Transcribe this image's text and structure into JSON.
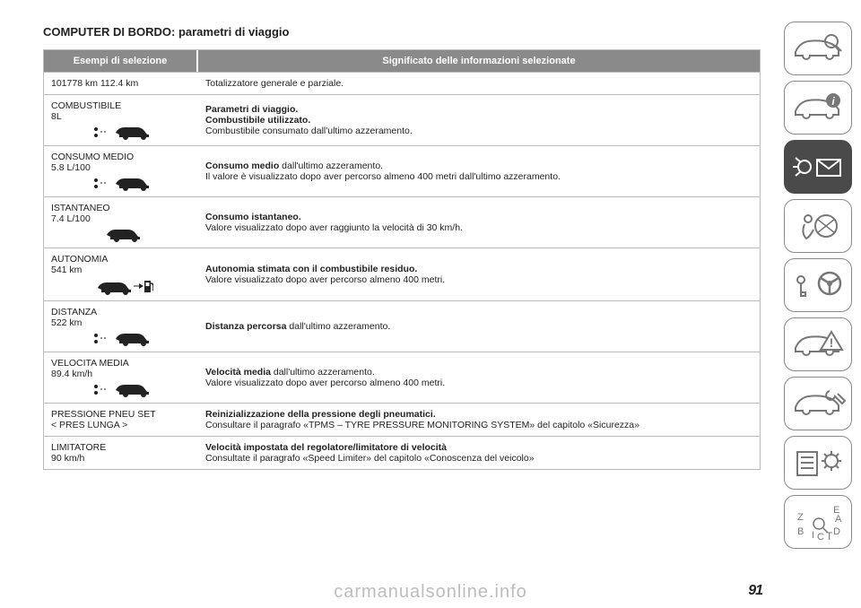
{
  "page_title": "COMPUTER DI BORDO: parametri di viaggio",
  "table": {
    "header_left": "Esempi di selezione",
    "header_right": "Significato delle informazioni selezionate",
    "header_bg": "#8a8a8a",
    "header_fg": "#ffffff",
    "border_color": "#bbbbbb",
    "rows": [
      {
        "left_l1": "101778 km 112.4 km",
        "left_l2": "",
        "icon": "none",
        "right_bold": "",
        "right_plain": "Totalizzatore generale e parziale."
      },
      {
        "left_l1": "COMBUSTIBILE",
        "left_l2": "8L",
        "icon": "trip",
        "right_bold": "Parametri di viaggio.\nCombustibile utilizzato.",
        "right_plain": "Combustibile consumato dall'ultimo azzeramento."
      },
      {
        "left_l1": "CONSUMO MEDIO",
        "left_l2": "5.8 L/100",
        "icon": "trip",
        "right_bold": "Consumo medio",
        "right_cont": " dall'ultimo azzeramento.",
        "right_plain": "Il valore è visualizzato dopo aver percorso almeno 400 metri dall'ultimo azzeramento."
      },
      {
        "left_l1": "ISTANTANEO",
        "left_l2": "7.4 L/100",
        "icon": "car",
        "right_bold": "Consumo istantaneo.",
        "right_plain": "Valore visualizzato dopo aver raggiunto la velocità di 30 km/h."
      },
      {
        "left_l1": "AUTONOMIA",
        "left_l2": "541 km",
        "icon": "pump",
        "right_bold": "Autonomia stimata con il combustibile residuo.",
        "right_plain": "Valore visualizzato dopo aver percorso almeno 400 metri."
      },
      {
        "left_l1": "DISTANZA",
        "left_l2": "522 km",
        "icon": "trip",
        "right_bold": "Distanza percorsa",
        "right_cont": " dall'ultimo azzeramento.",
        "right_plain": ""
      },
      {
        "left_l1": "VELOCITA MEDIA",
        "left_l2": "89.4 km/h",
        "icon": "trip",
        "right_bold": "Velocità media",
        "right_cont": " dall'ultimo azzeramento.",
        "right_plain": "Valore visualizzato dopo aver percorso almeno 400 metri."
      },
      {
        "left_l1": "PRESSIONE PNEU SET",
        "left_l2": "< PRES LUNGA >",
        "icon": "none",
        "right_bold": "Reinizializzazione della pressione degli pneumatici.",
        "right_plain": "Consultare il paragrafo «TPMS – TYRE PRESSURE MONITORING SYSTEM» del capitolo «Sicurezza»"
      },
      {
        "left_l1": "LIMITATORE",
        "left_l2": "90 km/h",
        "icon": "none",
        "right_bold": "Velocità impostata del regolatore/limitatore di velocità",
        "right_plain": "Consultate il paragrafo «Speed Limiter» del capitolo «Conoscenza del veicolo»"
      }
    ]
  },
  "sidebar": {
    "border_color": "#888888",
    "inactive_fg": "#777777",
    "active_bg": "#4a4a4a",
    "active_fg": "#ffffff",
    "items": [
      {
        "name": "car-magnify-icon",
        "active": false
      },
      {
        "name": "car-info-icon",
        "active": false
      },
      {
        "name": "light-envelope-icon",
        "active": true
      },
      {
        "name": "airbag-icon",
        "active": false
      },
      {
        "name": "key-wheel-icon",
        "active": false
      },
      {
        "name": "car-warning-icon",
        "active": false
      },
      {
        "name": "car-wrench-icon",
        "active": false
      },
      {
        "name": "list-gear-icon",
        "active": false
      },
      {
        "name": "alpha-index-icon",
        "active": false
      }
    ]
  },
  "page_number": "91",
  "watermark": "carmanualsonline.info"
}
